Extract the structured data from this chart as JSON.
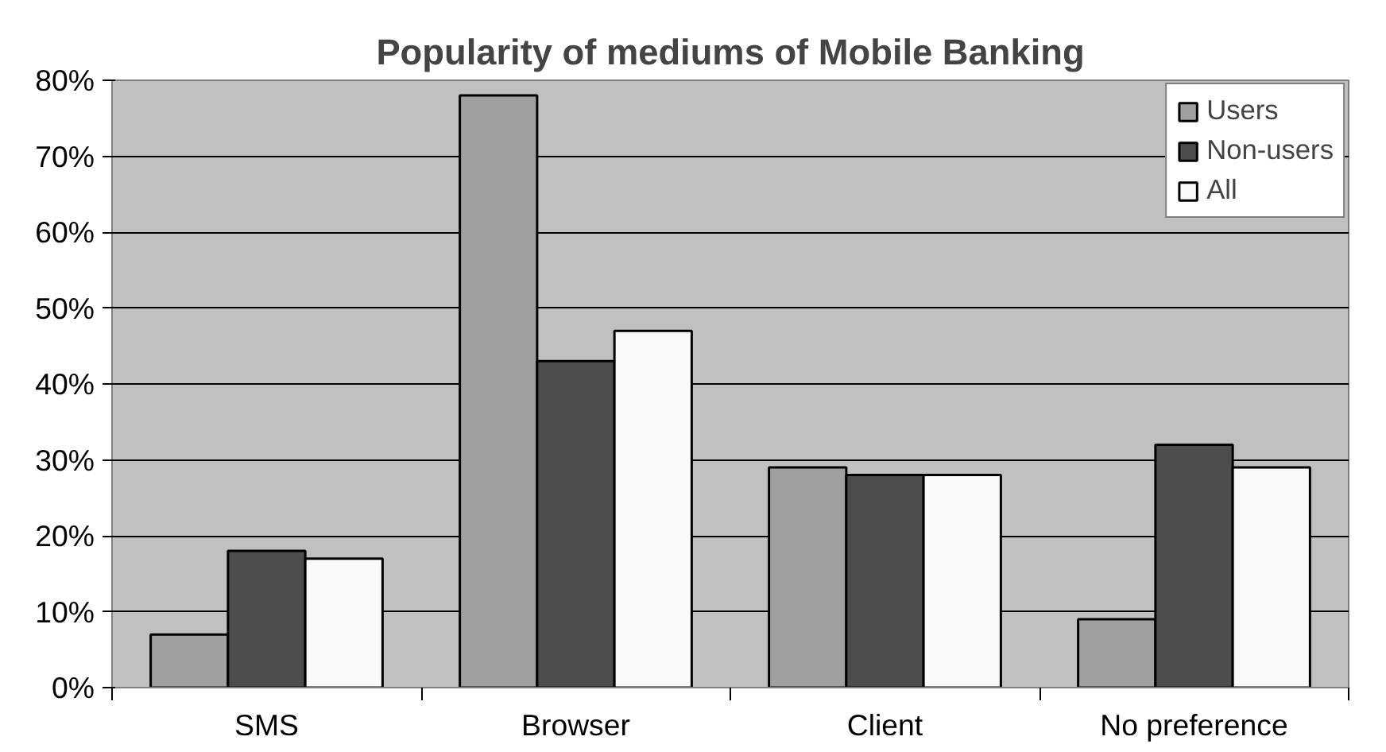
{
  "chart_data": {
    "type": "bar",
    "title": "Popularity of mediums of Mobile Banking",
    "categories": [
      "SMS",
      "Browser",
      "Client",
      "No preference"
    ],
    "series": [
      {
        "name": "Users",
        "color": "#a0a0a0",
        "values": [
          7,
          78,
          29,
          9
        ]
      },
      {
        "name": "Non-users",
        "color": "#4d4d4d",
        "values": [
          18,
          43,
          28,
          32
        ]
      },
      {
        "name": "All",
        "color": "#fafafa",
        "values": [
          17,
          47,
          28,
          29
        ]
      }
    ],
    "ylim": [
      0,
      80
    ],
    "yticks": [
      {
        "value": 0,
        "label": "0%"
      },
      {
        "value": 10,
        "label": "10%"
      },
      {
        "value": 20,
        "label": "20%"
      },
      {
        "value": 30,
        "label": "30%"
      },
      {
        "value": 40,
        "label": "40%"
      },
      {
        "value": 50,
        "label": "50%"
      },
      {
        "value": 60,
        "label": "60%"
      },
      {
        "value": 70,
        "label": "70%"
      },
      {
        "value": 80,
        "label": "80%"
      }
    ],
    "grid": "y",
    "legend": "top right"
  }
}
